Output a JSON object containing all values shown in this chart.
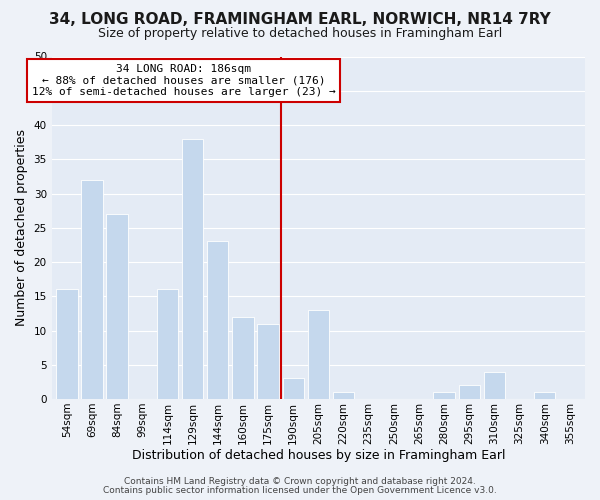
{
  "title": "34, LONG ROAD, FRAMINGHAM EARL, NORWICH, NR14 7RY",
  "subtitle": "Size of property relative to detached houses in Framingham Earl",
  "xlabel": "Distribution of detached houses by size in Framingham Earl",
  "ylabel": "Number of detached properties",
  "footer_line1": "Contains HM Land Registry data © Crown copyright and database right 2024.",
  "footer_line2": "Contains public sector information licensed under the Open Government Licence v3.0.",
  "bar_labels": [
    "54sqm",
    "69sqm",
    "84sqm",
    "99sqm",
    "114sqm",
    "129sqm",
    "144sqm",
    "160sqm",
    "175sqm",
    "190sqm",
    "205sqm",
    "220sqm",
    "235sqm",
    "250sqm",
    "265sqm",
    "280sqm",
    "295sqm",
    "310sqm",
    "325sqm",
    "340sqm",
    "355sqm"
  ],
  "bar_values": [
    16,
    32,
    27,
    0,
    16,
    38,
    23,
    12,
    11,
    3,
    13,
    1,
    0,
    0,
    0,
    1,
    2,
    4,
    0,
    1,
    0
  ],
  "bar_color": "#c5d8ed",
  "bar_edge_color": "#ffffff",
  "reference_line_x": 8.5,
  "reference_line_label": "34 LONG ROAD: 186sqm",
  "annotation_line1": "← 88% of detached houses are smaller (176)",
  "annotation_line2": "12% of semi-detached houses are larger (23) →",
  "annotation_box_facecolor": "#ffffff",
  "annotation_box_edgecolor": "#cc0000",
  "ylim": [
    0,
    50
  ],
  "yticks": [
    0,
    5,
    10,
    15,
    20,
    25,
    30,
    35,
    40,
    45,
    50
  ],
  "background_color": "#eef2f8",
  "plot_background_color": "#e4ebf5",
  "grid_color": "#ffffff",
  "title_fontsize": 11,
  "subtitle_fontsize": 9,
  "axis_label_fontsize": 9,
  "tick_fontsize": 7.5,
  "annotation_fontsize": 8,
  "footer_fontsize": 6.5
}
